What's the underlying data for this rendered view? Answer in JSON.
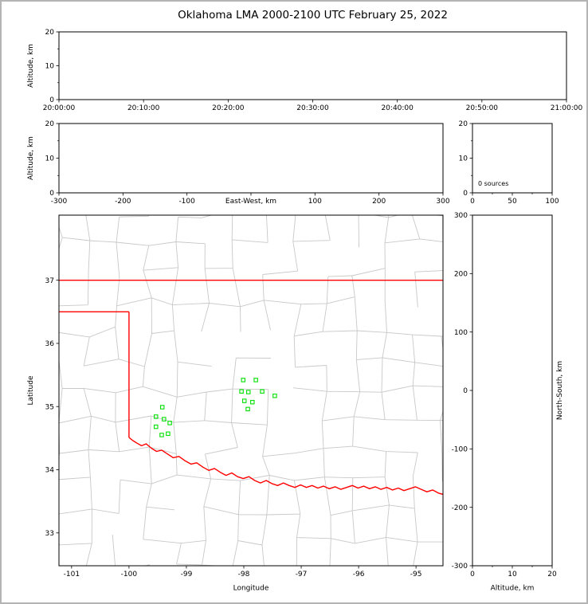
{
  "window": {
    "background": "#ffffff",
    "frame_color": "#b4b4b4"
  },
  "chart_data": {
    "type": "composite",
    "title": "Oklahoma LMA 2000-2100 UTC February 25, 2022",
    "colors": {
      "axis": "#000000",
      "county_lines": "#c8c8c8",
      "state_border": "#ff0000",
      "station_marker": "#00e000"
    },
    "panels": {
      "time_height": {
        "type": "scatter",
        "ylabel": "Altitude, km",
        "ylim": [
          0,
          20
        ],
        "yticks": [
          0,
          10,
          20
        ],
        "yminor": [
          5,
          15
        ],
        "xticks_labels": [
          "20:00:00",
          "20:10:00",
          "20:20:00",
          "20:30:00",
          "20:40:00",
          "20:50:00",
          "21:00:00"
        ],
        "points": []
      },
      "ew_height": {
        "type": "scatter",
        "xlabel": "East-West, km",
        "ylabel": "Altitude, km",
        "xlim": [
          -300,
          300
        ],
        "xticks": [
          -300,
          -200,
          -100,
          0,
          100,
          200,
          300
        ],
        "hide_xtick_labels": [
          0
        ],
        "ylim": [
          0,
          20
        ],
        "yticks": [
          0,
          10,
          20
        ],
        "yminor": [
          5,
          15
        ],
        "points": []
      },
      "height_hist": {
        "type": "line",
        "annotation": "0 sources",
        "xlim": [
          0,
          100
        ],
        "xticks": [
          0,
          50,
          100
        ],
        "xminor": [
          25,
          75
        ],
        "ylim": [
          0,
          20
        ],
        "yticks": [
          0,
          10,
          20
        ],
        "yminor": [
          5,
          15
        ],
        "points": []
      },
      "map": {
        "type": "scatter",
        "xlabel": "Longitude",
        "ylabel": "Latitude",
        "xlim": [
          -101.22,
          -94.53
        ],
        "xticks": [
          -101,
          -100,
          -99,
          -98,
          -97,
          -96,
          -95
        ],
        "ylim": [
          32.48,
          38.03
        ],
        "yticks": [
          33,
          34,
          35,
          36,
          37
        ],
        "stations": [
          [
            -98.01,
            35.42
          ],
          [
            -97.79,
            35.42
          ],
          [
            -98.04,
            35.24
          ],
          [
            -97.92,
            35.23
          ],
          [
            -97.68,
            35.24
          ],
          [
            -97.99,
            35.09
          ],
          [
            -97.85,
            35.07
          ],
          [
            -97.46,
            35.17
          ],
          [
            -97.93,
            34.96
          ],
          [
            -99.42,
            34.99
          ],
          [
            -99.53,
            34.84
          ],
          [
            -99.39,
            34.8
          ],
          [
            -99.29,
            34.74
          ],
          [
            -99.53,
            34.68
          ],
          [
            -99.43,
            34.55
          ],
          [
            -99.32,
            34.57
          ]
        ],
        "points": []
      },
      "ns_height": {
        "type": "scatter",
        "xlabel": "Altitude, km",
        "ylabel": "North-South, km",
        "xlim": [
          0,
          20
        ],
        "xticks": [
          0,
          10,
          20
        ],
        "xminor": [
          5,
          15
        ],
        "ylim": [
          -300,
          300
        ],
        "yticks": [
          300,
          200,
          100,
          0,
          -100,
          -200,
          -300
        ],
        "points": []
      }
    },
    "map_layers": {
      "state_border_segments": [
        [
          [
            -101.22,
            37.0
          ],
          [
            -94.53,
            37.0
          ]
        ],
        [
          [
            -101.22,
            36.5
          ],
          [
            -100.0,
            36.5
          ]
        ],
        [
          [
            -100.0,
            36.5
          ],
          [
            -100.0,
            34.51
          ]
        ],
        [
          [
            -100.0,
            34.51
          ],
          [
            -99.93,
            34.46
          ],
          [
            -99.86,
            34.42
          ],
          [
            -99.78,
            34.38
          ],
          [
            -99.7,
            34.41
          ],
          [
            -99.61,
            34.34
          ],
          [
            -99.52,
            34.29
          ],
          [
            -99.43,
            34.31
          ],
          [
            -99.33,
            34.25
          ],
          [
            -99.23,
            34.19
          ],
          [
            -99.13,
            34.21
          ],
          [
            -99.02,
            34.14
          ],
          [
            -98.92,
            34.09
          ],
          [
            -98.82,
            34.11
          ],
          [
            -98.71,
            34.04
          ],
          [
            -98.61,
            33.99
          ],
          [
            -98.51,
            34.02
          ],
          [
            -98.41,
            33.96
          ],
          [
            -98.31,
            33.91
          ],
          [
            -98.21,
            33.95
          ],
          [
            -98.11,
            33.89
          ],
          [
            -98.01,
            33.86
          ],
          [
            -97.91,
            33.89
          ],
          [
            -97.81,
            33.83
          ],
          [
            -97.71,
            33.79
          ],
          [
            -97.61,
            33.83
          ],
          [
            -97.51,
            33.78
          ],
          [
            -97.41,
            33.75
          ],
          [
            -97.31,
            33.79
          ],
          [
            -97.21,
            33.75
          ],
          [
            -97.11,
            33.72
          ],
          [
            -97.01,
            33.76
          ],
          [
            -96.91,
            33.72
          ],
          [
            -96.81,
            33.75
          ],
          [
            -96.71,
            33.71
          ],
          [
            -96.61,
            33.74
          ],
          [
            -96.51,
            33.7
          ],
          [
            -96.41,
            33.73
          ],
          [
            -96.31,
            33.69
          ],
          [
            -96.21,
            33.72
          ],
          [
            -96.11,
            33.75
          ],
          [
            -96.01,
            33.71
          ],
          [
            -95.91,
            33.74
          ],
          [
            -95.81,
            33.7
          ],
          [
            -95.71,
            33.73
          ],
          [
            -95.61,
            33.69
          ],
          [
            -95.51,
            33.72
          ],
          [
            -95.41,
            33.68
          ],
          [
            -95.31,
            33.71
          ],
          [
            -95.21,
            33.67
          ],
          [
            -95.11,
            33.7
          ],
          [
            -95.01,
            33.73
          ],
          [
            -94.91,
            33.69
          ],
          [
            -94.81,
            33.65
          ],
          [
            -94.71,
            33.68
          ],
          [
            -94.61,
            33.63
          ],
          [
            -94.53,
            33.61
          ]
        ]
      ],
      "county_grid": {
        "lon_start": -101.25,
        "lon_end": -94.45,
        "lat_start": 32.42,
        "lat_end": 38.1,
        "cell_w": 0.52,
        "cell_h": 0.47,
        "jitter": 0.18,
        "skip": 0.26,
        "seed": 20220225
      }
    }
  }
}
